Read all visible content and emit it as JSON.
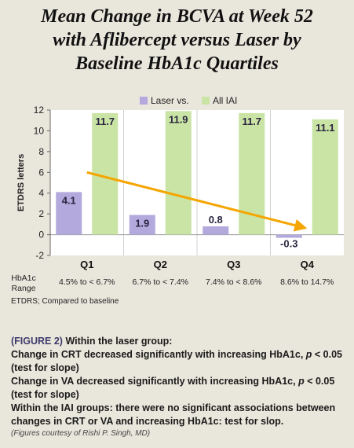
{
  "title_lines": [
    "Mean Change in BCVA at Week 52",
    "with Aflibercept versus Laser by",
    "Baseline HbA1c Quartiles"
  ],
  "colors": {
    "laser": "#b3a9dc",
    "iai": "#c9e4a4",
    "arrow": "#f5a500",
    "background": "#e9e6dc",
    "plot_bg": "#ffffff"
  },
  "chart_data": {
    "type": "bar",
    "categories": [
      "Q1",
      "Q2",
      "Q3",
      "Q4"
    ],
    "series": [
      {
        "name": "Laser vs.",
        "values": [
          4.1,
          1.9,
          0.8,
          -0.3
        ],
        "labels": [
          "4.1",
          "1.9",
          "0.8",
          "-0.3"
        ]
      },
      {
        "name": "All IAI",
        "values": [
          11.7,
          11.9,
          11.7,
          11.1
        ],
        "labels": [
          "11.7",
          "11.9",
          "11.7",
          "11.1"
        ]
      }
    ],
    "ylabel": "ETDRS letters",
    "ylim": [
      -2,
      12
    ],
    "yticks": [
      -2,
      0,
      2,
      4,
      6,
      8,
      10,
      12
    ],
    "legend_position": "top",
    "grid": false,
    "range_label": [
      "HbA1c",
      "Range"
    ],
    "ranges": [
      "4.5% to < 6.7%",
      "6.7% to < 7.4%",
      "7.4% to < 8.6%",
      "8.6% to 14.7%"
    ],
    "trend_arrow": {
      "from": {
        "category": "Q1",
        "y": 6
      },
      "to": {
        "category": "Q4",
        "y": 0.6
      }
    }
  },
  "footnote": "ETDRS; Compared to baseline",
  "caption": {
    "label": "(FIGURE 2)",
    "intro": "Within the laser group:",
    "line1_a": "Change in CRT decreased significantly with increasing HbA1c, ",
    "p": "p",
    "line1_b": " < 0.05 (test for slope)",
    "line2_a": "Change in VA decreased significantly with increasing HbA1c, ",
    "line2_b": " < 0.05 (test for slope)",
    "line3": "Within the IAI groups: there were no significant associations between changes in CRT or VA and increasing HbA1c: test for slop."
  },
  "credit": "(Figures courtesy of Rishi P. Singh, MD)"
}
